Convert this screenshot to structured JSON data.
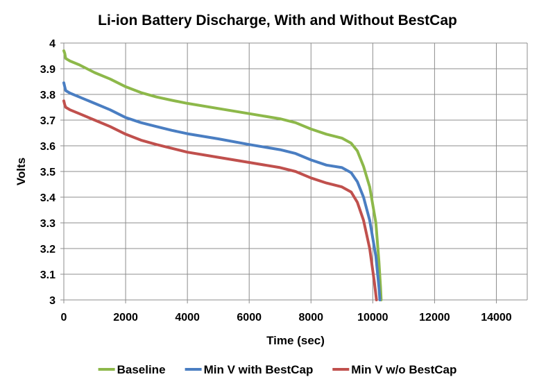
{
  "chart_data": {
    "type": "line",
    "title": "Li-ion Battery Discharge, With and Without BestCap",
    "xlabel": "Time (sec)",
    "ylabel": "Volts",
    "xlim": [
      0,
      15000
    ],
    "ylim": [
      3,
      4
    ],
    "xticks": [
      0,
      2000,
      4000,
      6000,
      8000,
      10000,
      12000,
      14000
    ],
    "yticks": [
      3,
      3.1,
      3.2,
      3.3,
      3.4,
      3.5,
      3.6,
      3.7,
      3.8,
      3.9,
      4
    ],
    "x_tick_labels": [
      "0",
      "2000",
      "4000",
      "6000",
      "8000",
      "10000",
      "12000",
      "14000"
    ],
    "y_tick_labels": [
      "3",
      "3.1",
      "3.2",
      "3.3",
      "3.4",
      "3.5",
      "3.6",
      "3.7",
      "3.8",
      "3.9",
      "4"
    ],
    "grid": true,
    "legend_position": "bottom",
    "series": [
      {
        "name": "Baseline",
        "color": "#8DB84A",
        "points": [
          [
            0,
            3.97
          ],
          [
            30,
            3.96
          ],
          [
            60,
            3.94
          ],
          [
            200,
            3.93
          ],
          [
            500,
            3.915
          ],
          [
            1000,
            3.885
          ],
          [
            1500,
            3.86
          ],
          [
            2000,
            3.83
          ],
          [
            2500,
            3.807
          ],
          [
            3000,
            3.79
          ],
          [
            3500,
            3.777
          ],
          [
            4000,
            3.765
          ],
          [
            5000,
            3.745
          ],
          [
            6000,
            3.725
          ],
          [
            7000,
            3.705
          ],
          [
            7500,
            3.69
          ],
          [
            8000,
            3.665
          ],
          [
            8500,
            3.645
          ],
          [
            9000,
            3.63
          ],
          [
            9300,
            3.61
          ],
          [
            9500,
            3.58
          ],
          [
            9700,
            3.52
          ],
          [
            9900,
            3.44
          ],
          [
            10100,
            3.3
          ],
          [
            10200,
            3.15
          ],
          [
            10250,
            3.05
          ],
          [
            10270,
            3.0
          ]
        ]
      },
      {
        "name": "Min V with BestCap",
        "color": "#4A7EC2",
        "points": [
          [
            0,
            3.845
          ],
          [
            30,
            3.83
          ],
          [
            60,
            3.815
          ],
          [
            200,
            3.805
          ],
          [
            500,
            3.79
          ],
          [
            1000,
            3.765
          ],
          [
            1500,
            3.74
          ],
          [
            2000,
            3.71
          ],
          [
            2500,
            3.69
          ],
          [
            3000,
            3.675
          ],
          [
            3500,
            3.66
          ],
          [
            4000,
            3.647
          ],
          [
            5000,
            3.627
          ],
          [
            6000,
            3.605
          ],
          [
            7000,
            3.585
          ],
          [
            7500,
            3.57
          ],
          [
            8000,
            3.545
          ],
          [
            8500,
            3.525
          ],
          [
            9000,
            3.515
          ],
          [
            9300,
            3.495
          ],
          [
            9500,
            3.46
          ],
          [
            9700,
            3.4
          ],
          [
            9900,
            3.31
          ],
          [
            10100,
            3.17
          ],
          [
            10200,
            3.05
          ],
          [
            10230,
            3.0
          ]
        ]
      },
      {
        "name": "Min V w/o BestCap",
        "color": "#C0504D",
        "points": [
          [
            0,
            3.775
          ],
          [
            30,
            3.76
          ],
          [
            60,
            3.75
          ],
          [
            200,
            3.74
          ],
          [
            500,
            3.725
          ],
          [
            1000,
            3.7
          ],
          [
            1500,
            3.675
          ],
          [
            2000,
            3.645
          ],
          [
            2500,
            3.622
          ],
          [
            3000,
            3.605
          ],
          [
            3500,
            3.59
          ],
          [
            4000,
            3.575
          ],
          [
            5000,
            3.555
          ],
          [
            6000,
            3.535
          ],
          [
            7000,
            3.515
          ],
          [
            7500,
            3.5
          ],
          [
            8000,
            3.475
          ],
          [
            8500,
            3.455
          ],
          [
            9000,
            3.44
          ],
          [
            9300,
            3.42
          ],
          [
            9500,
            3.38
          ],
          [
            9700,
            3.31
          ],
          [
            9900,
            3.2
          ],
          [
            10050,
            3.07
          ],
          [
            10120,
            3.0
          ]
        ]
      }
    ]
  }
}
